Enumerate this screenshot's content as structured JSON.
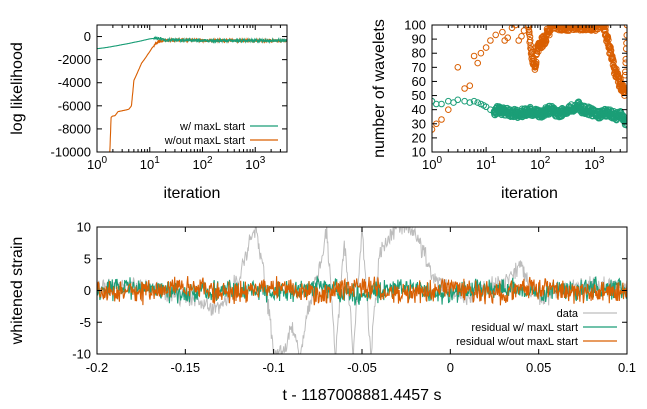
{
  "colors": {
    "green": "#1b9e77",
    "orange": "#d95f02",
    "gray": "#bdbdbd",
    "axis": "#000000"
  },
  "chart_data": [
    {
      "type": "line",
      "xlabel": "iteration",
      "ylabel": "log likelihood",
      "xscale": "log",
      "xlim": [
        1,
        4000
      ],
      "ylim": [
        -10000,
        1000
      ],
      "xticks": [
        1,
        10,
        100,
        1000
      ],
      "xtick_labels": [
        {
          "base": "10",
          "exp": "0"
        },
        {
          "base": "10",
          "exp": "1"
        },
        {
          "base": "10",
          "exp": "2"
        },
        {
          "base": "10",
          "exp": "3"
        }
      ],
      "yticks": [
        0,
        -2000,
        -4000,
        -6000,
        -8000,
        -10000
      ],
      "ytick_labels": [
        "0",
        "-2000",
        "-4000",
        "-6000",
        "-8000",
        "-10000"
      ],
      "legend_position": "bottom-right",
      "series": [
        {
          "name": "w/ maxL start",
          "color": "green",
          "x": [
            1,
            1.5,
            2,
            3,
            5,
            8,
            10,
            14,
            20,
            50,
            100,
            300,
            1000,
            4000
          ],
          "y": [
            -1050,
            -950,
            -850,
            -700,
            -500,
            -300,
            -200,
            -120,
            -300,
            -300,
            -350,
            -350,
            -350,
            -350
          ]
        },
        {
          "name": "w/out maxL start",
          "color": "orange",
          "x": [
            1.75,
            1.85,
            1.95,
            2.2,
            2.5,
            3.2,
            4,
            4.5,
            5,
            6,
            7,
            9,
            11,
            13,
            15,
            20,
            30,
            50,
            100,
            300,
            1000,
            4000
          ],
          "y": [
            -10000,
            -7000,
            -6900,
            -6850,
            -6500,
            -6400,
            -6300,
            -6000,
            -3800,
            -3000,
            -2300,
            -1600,
            -1000,
            -600,
            -400,
            -350,
            -300,
            -300,
            -350,
            -350,
            -350,
            -350
          ]
        }
      ]
    },
    {
      "type": "scatter",
      "xlabel": "iteration",
      "ylabel": "number of wavelets",
      "xscale": "log",
      "xlim": [
        1,
        4000
      ],
      "ylim": [
        10,
        100
      ],
      "xticks": [
        1,
        10,
        100,
        1000
      ],
      "xtick_labels": [
        {
          "base": "10",
          "exp": "0"
        },
        {
          "base": "10",
          "exp": "1"
        },
        {
          "base": "10",
          "exp": "2"
        },
        {
          "base": "10",
          "exp": "3"
        }
      ],
      "yticks": [
        10,
        20,
        30,
        40,
        50,
        60,
        70,
        80,
        90,
        100
      ],
      "ytick_labels": [
        "10",
        "20",
        "30",
        "40",
        "50",
        "60",
        "70",
        "80",
        "90",
        "100"
      ],
      "series": [
        {
          "name": "w/ maxL start",
          "color": "green",
          "x": [
            1,
            1.2,
            1.5,
            2,
            2.5,
            3,
            4,
            5,
            6,
            7,
            8,
            9,
            10,
            12,
            14,
            16,
            20,
            25,
            30,
            40,
            50,
            60,
            80,
            100,
            130,
            160,
            200,
            250,
            300,
            400,
            500,
            600,
            800,
            1000,
            1300,
            1600,
            2000,
            2500,
            3000,
            3500,
            4000
          ],
          "y": [
            46,
            44,
            44,
            46,
            45,
            47,
            46,
            45,
            46,
            45,
            44,
            43,
            42,
            40,
            38,
            40,
            39,
            38,
            38,
            37,
            38,
            39,
            38,
            37,
            39,
            40,
            37,
            38,
            40,
            41,
            43,
            40,
            39,
            37,
            36,
            38,
            37,
            35,
            38,
            32,
            30
          ]
        },
        {
          "name": "w/out maxL start",
          "color": "orange",
          "x": [
            1,
            1.2,
            1.5,
            2,
            3,
            4,
            5,
            6,
            7,
            8,
            10,
            12,
            15,
            20,
            22,
            25,
            30,
            35,
            40,
            45,
            50,
            60,
            70,
            80,
            90,
            100,
            120,
            140,
            160,
            200,
            250,
            300,
            400,
            500,
            700,
            1000,
            1300,
            1500,
            1700,
            2000,
            2300,
            2600,
            3000,
            3300,
            3600,
            4000
          ],
          "y": [
            26,
            30,
            33,
            40,
            70,
            55,
            57,
            78,
            73,
            80,
            84,
            89,
            93,
            95,
            89,
            91,
            98,
            100,
            89,
            92,
            96,
            99,
            78,
            70,
            84,
            86,
            90,
            95,
            100,
            100,
            100,
            100,
            100,
            100,
            100,
            100,
            100,
            100,
            90,
            80,
            70,
            65,
            58,
            55,
            50,
            100
          ]
        }
      ]
    },
    {
      "type": "line",
      "xlabel": "t - 1187008881.4457 s",
      "ylabel": "whitened strain",
      "xlim": [
        -0.2,
        0.1
      ],
      "ylim": [
        -10,
        10
      ],
      "xticks": [
        -0.2,
        -0.15,
        -0.1,
        -0.05,
        0,
        0.05,
        0.1
      ],
      "xtick_labels": [
        "-0.2",
        "-0.15",
        "-0.1",
        "-0.05",
        "0",
        "0.05",
        "0.1"
      ],
      "yticks": [
        -10,
        -5,
        0,
        5,
        10
      ],
      "ytick_labels": [
        "-10",
        "-5",
        "0",
        "5",
        "10"
      ],
      "legend_position": "bottom-right",
      "series": [
        {
          "name": "data",
          "color": "gray",
          "x": [
            -0.2,
            -0.18,
            -0.15,
            -0.13,
            -0.12,
            -0.115,
            -0.11,
            -0.105,
            -0.1,
            -0.095,
            -0.09,
            -0.085,
            -0.08,
            -0.075,
            -0.07,
            -0.065,
            -0.06,
            -0.055,
            -0.05,
            -0.045,
            -0.04,
            -0.035,
            -0.03,
            -0.025,
            -0.02,
            -0.015,
            -0.01,
            -0.005,
            0,
            0.01,
            0.02,
            0.03,
            0.04,
            0.045,
            0.05,
            0.055,
            0.06,
            0.08,
            0.1
          ],
          "y": [
            0,
            1,
            -1,
            -3,
            2,
            6,
            10,
            2,
            -10,
            -10,
            -6,
            -10,
            -2,
            2,
            10,
            -10,
            8,
            -10,
            10,
            -10,
            6,
            8,
            10,
            10,
            9,
            6,
            2,
            1,
            0,
            -1,
            0.5,
            1,
            4,
            0,
            -1.5,
            -1,
            0,
            1,
            0
          ]
        },
        {
          "name": "residual w/ maxL start",
          "color": "green",
          "x": [
            -0.2,
            -0.175,
            -0.15,
            -0.125,
            -0.1,
            -0.075,
            -0.05,
            -0.025,
            0,
            0.025,
            0.05,
            0.075,
            0.1
          ],
          "y": [
            0,
            1.5,
            -1.5,
            1.2,
            -1.5,
            1.5,
            -1.8,
            1.5,
            -1.2,
            1.5,
            -1.5,
            1.2,
            0
          ]
        },
        {
          "name": "residual w/out maxL start",
          "color": "orange",
          "x": [
            -0.2,
            -0.175,
            -0.15,
            -0.125,
            -0.1,
            -0.075,
            -0.05,
            -0.025,
            0,
            0.025,
            0.05,
            0.075,
            0.1
          ],
          "y": [
            0,
            -1.5,
            1.8,
            -1.4,
            1.6,
            -1.6,
            1.6,
            -1.8,
            1.5,
            -1.6,
            1.8,
            -1.5,
            0
          ]
        }
      ]
    }
  ]
}
